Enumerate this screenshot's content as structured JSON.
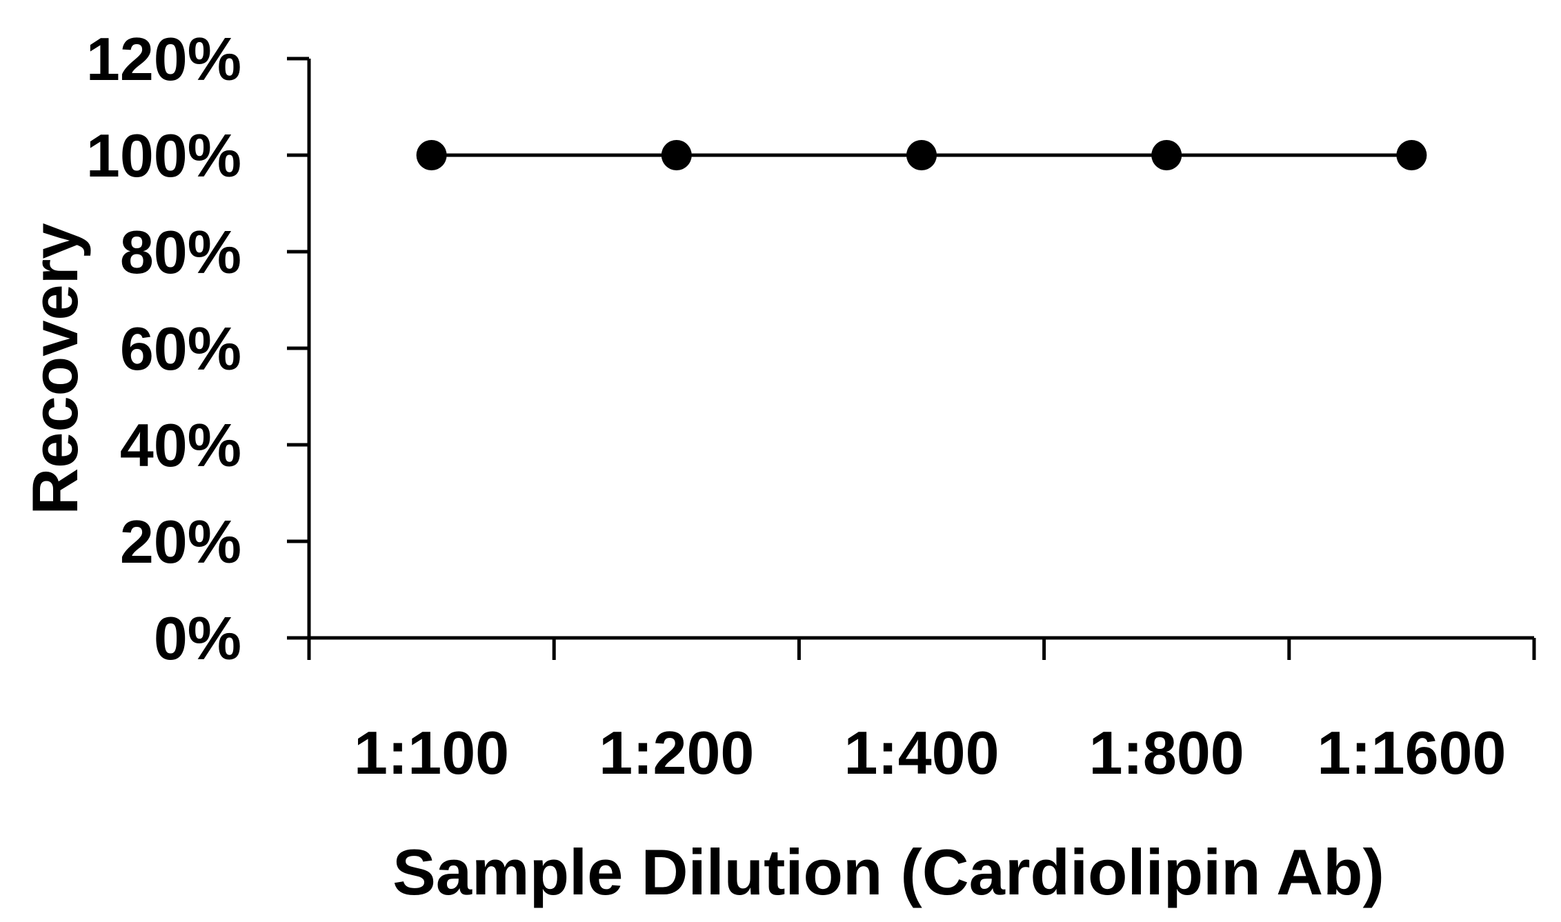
{
  "chart_data": {
    "type": "line",
    "title": "",
    "xlabel": "Sample Dilution (Cardiolipin Ab)",
    "ylabel": "Recovery",
    "categories": [
      "1:100",
      "1:200",
      "1:400",
      "1:800",
      "1:1600"
    ],
    "series": [
      {
        "values": [
          100,
          100,
          100,
          100,
          100
        ]
      }
    ],
    "ylim": [
      0,
      120
    ],
    "yticks": [
      0,
      20,
      40,
      60,
      80,
      100,
      120
    ],
    "ytick_labels": [
      "0%",
      "20%",
      "40%",
      "60%",
      "80%",
      "100%",
      "120%"
    ],
    "grid": false,
    "legend": "none",
    "colors": {
      "line": "#000000",
      "marker": "#000000"
    }
  }
}
